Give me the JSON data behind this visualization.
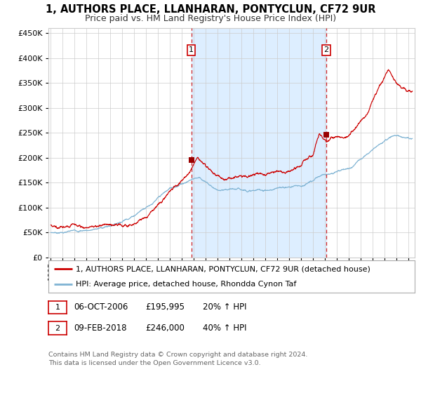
{
  "title": "1, AUTHORS PLACE, LLANHARAN, PONTYCLUN, CF72 9UR",
  "subtitle": "Price paid vs. HM Land Registry's House Price Index (HPI)",
  "legend_line1": "1, AUTHORS PLACE, LLANHARAN, PONTYCLUN, CF72 9UR (detached house)",
  "legend_line2": "HPI: Average price, detached house, Rhondda Cynon Taf",
  "annotation1_num": "1",
  "annotation1_date": "06-OCT-2006",
  "annotation1_price": "£195,995",
  "annotation1_hpi": "20% ↑ HPI",
  "annotation2_num": "2",
  "annotation2_date": "09-FEB-2018",
  "annotation2_price": "£246,000",
  "annotation2_hpi": "40% ↑ HPI",
  "footer": "Contains HM Land Registry data © Crown copyright and database right 2024.\nThis data is licensed under the Open Government Licence v3.0.",
  "red_line_color": "#cc0000",
  "blue_line_color": "#7fb3d3",
  "shade_color": "#ddeeff",
  "vline_color": "#cc0000",
  "background_color": "#ffffff",
  "grid_color": "#cccccc",
  "marker_color": "#990000",
  "ylim": [
    0,
    460000
  ],
  "yticks": [
    0,
    50000,
    100000,
    150000,
    200000,
    250000,
    300000,
    350000,
    400000,
    450000
  ],
  "xlim_start": 1994.8,
  "xlim_end": 2025.5,
  "purchase1_year": 2006.77,
  "purchase2_year": 2018.1,
  "purchase1_price": 195995,
  "purchase2_price": 246000
}
